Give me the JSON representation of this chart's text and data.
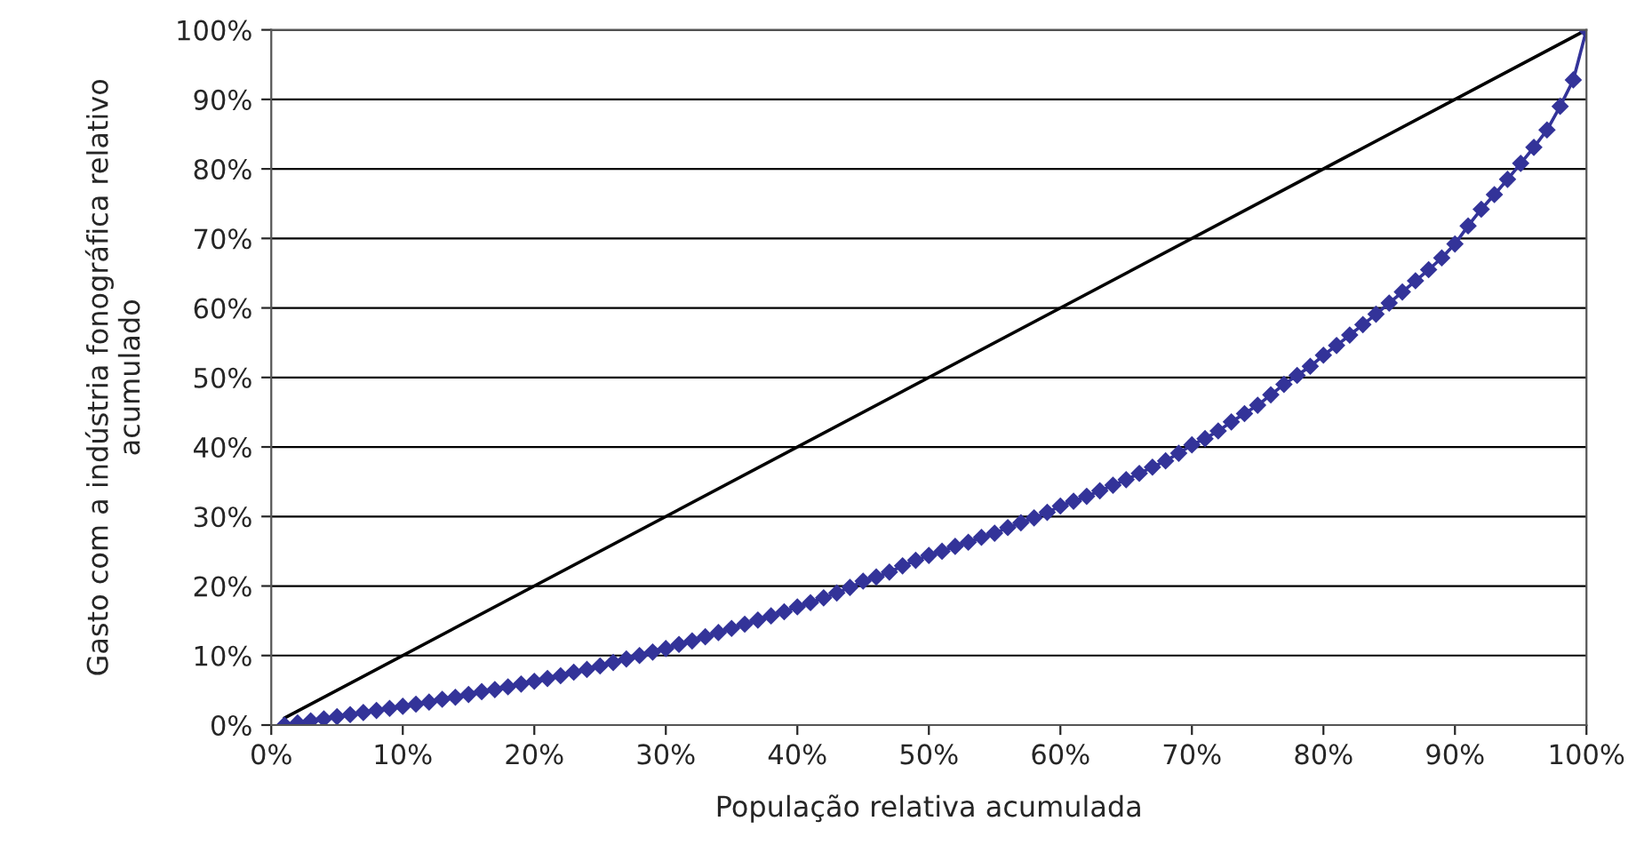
{
  "chart_data": {
    "type": "line",
    "xlabel": "População relativa acumulada",
    "ylabel": "Gasto com a indústria fonográfica relativo acumulado",
    "series": [
      {
        "color": "#000000",
        "marker": "none",
        "x": [
          1,
          100
        ],
        "values": [
          1,
          100
        ]
      },
      {
        "color": "#333399",
        "marker": "diamond",
        "x": [
          1,
          2,
          3,
          4,
          5,
          6,
          7,
          8,
          9,
          10,
          11,
          12,
          13,
          14,
          15,
          16,
          17,
          18,
          19,
          20,
          21,
          22,
          23,
          24,
          25,
          26,
          27,
          28,
          29,
          30,
          31,
          32,
          33,
          34,
          35,
          36,
          37,
          38,
          39,
          40,
          41,
          42,
          43,
          44,
          45,
          46,
          47,
          48,
          49,
          50,
          51,
          52,
          53,
          54,
          55,
          56,
          57,
          58,
          59,
          60,
          61,
          62,
          63,
          64,
          65,
          66,
          67,
          68,
          69,
          70,
          71,
          72,
          73,
          74,
          75,
          76,
          77,
          78,
          79,
          80,
          81,
          82,
          83,
          84,
          85,
          86,
          87,
          88,
          89,
          90,
          91,
          92,
          93,
          94,
          95,
          96,
          97,
          98,
          99,
          100
        ],
        "values": [
          0.0,
          0.3,
          0.6,
          0.9,
          1.2,
          1.5,
          1.8,
          2.1,
          2.4,
          2.7,
          3.0,
          3.3,
          3.7,
          4.0,
          4.4,
          4.8,
          5.1,
          5.5,
          5.9,
          6.3,
          6.7,
          7.1,
          7.6,
          8.0,
          8.5,
          9.0,
          9.5,
          10.0,
          10.5,
          11.0,
          11.6,
          12.1,
          12.7,
          13.3,
          13.9,
          14.5,
          15.1,
          15.7,
          16.3,
          17.0,
          17.6,
          18.3,
          19.0,
          19.8,
          20.7,
          21.3,
          22.0,
          22.9,
          23.7,
          24.4,
          25.0,
          25.7,
          26.3,
          27.0,
          27.6,
          28.4,
          29.1,
          29.8,
          30.6,
          31.5,
          32.2,
          32.9,
          33.7,
          34.5,
          35.3,
          36.2,
          37.1,
          38.0,
          39.1,
          40.3,
          41.2,
          42.3,
          43.6,
          44.8,
          46.0,
          47.5,
          49.0,
          50.3,
          51.6,
          53.2,
          54.6,
          56.1,
          57.6,
          59.1,
          60.7,
          62.3,
          63.9,
          65.5,
          67.2,
          69.2,
          71.8,
          74.2,
          76.3,
          78.5,
          80.8,
          83.1,
          85.6,
          89.0,
          92.8,
          100
        ]
      }
    ],
    "xlim": [
      0,
      100
    ],
    "ylim": [
      0,
      100
    ],
    "xticks": [
      {
        "value": 0,
        "label": "0%"
      },
      {
        "value": 10,
        "label": "10%"
      },
      {
        "value": 20,
        "label": "20%"
      },
      {
        "value": 30,
        "label": "30%"
      },
      {
        "value": 40,
        "label": "40%"
      },
      {
        "value": 50,
        "label": "50%"
      },
      {
        "value": 60,
        "label": "60%"
      },
      {
        "value": 70,
        "label": "70%"
      },
      {
        "value": 80,
        "label": "80%"
      },
      {
        "value": 90,
        "label": "90%"
      },
      {
        "value": 100,
        "label": "100%"
      }
    ],
    "yticks": [
      {
        "value": 0,
        "label": "0%"
      },
      {
        "value": 10,
        "label": "10%"
      },
      {
        "value": 20,
        "label": "20%"
      },
      {
        "value": 30,
        "label": "30%"
      },
      {
        "value": 40,
        "label": "40%"
      },
      {
        "value": 50,
        "label": "50%"
      },
      {
        "value": 60,
        "label": "60%"
      },
      {
        "value": 70,
        "label": "70%"
      },
      {
        "value": 80,
        "label": "80%"
      },
      {
        "value": 90,
        "label": "90%"
      },
      {
        "value": 100,
        "label": "100%"
      }
    ],
    "grid": "y"
  }
}
